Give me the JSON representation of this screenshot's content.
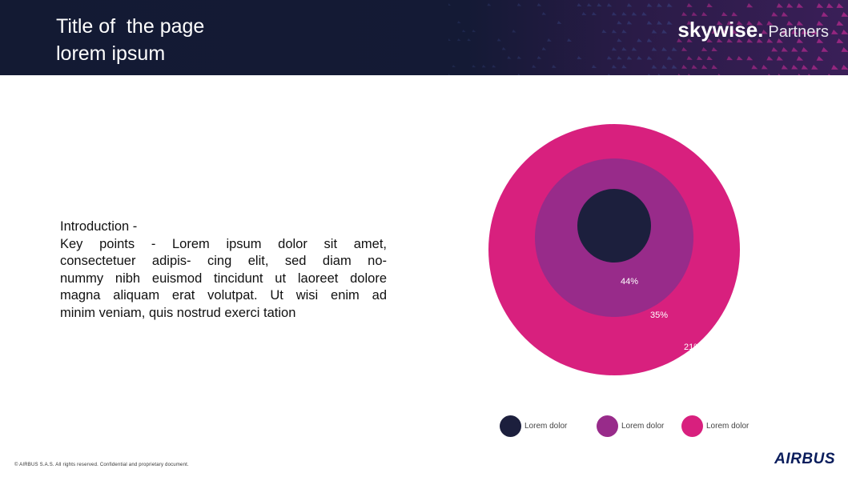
{
  "header": {
    "title_line1": "Title of  the page",
    "title_line2": "lorem ipsum",
    "brand_main": "skywise.",
    "brand_sub": "Partners"
  },
  "intro": {
    "heading": "Introduction -",
    "lines": [
      "Key  points  -  Lorem    ipsum  dolor  sit  amet,",
      "consectetuer  adipis-    cing  elit,  sed  diam  no-",
      "nummy nibh euismod   tincidunt ut laoreet  dolore",
      "magna  aliquam   erat  volutpat.  Ut  wisi   enim  ad",
      "minim veniam,  quis nostrud exerci  tation"
    ]
  },
  "chart_data": {
    "type": "pie",
    "layout": "nested-circles",
    "series": [
      {
        "name": "Lorem dolor",
        "value": 44,
        "label": "44%",
        "color": "#1c1f3d"
      },
      {
        "name": "Lorem dolor",
        "value": 35,
        "label": "35%",
        "color": "#982b8a"
      },
      {
        "name": "Lorem dolor",
        "value": 21,
        "label": "21%",
        "color": "#d8207e"
      }
    ],
    "legend_placement": "bottom"
  },
  "footer": {
    "note": "© AIRBUS S.A.S. All rights reserved. Confidential and proprietary document.",
    "logo": "AIRBUS"
  },
  "colors": {
    "header_bg": "#141a35",
    "accent_magenta": "#d8207e",
    "accent_purple": "#982b8a",
    "dark_navy": "#1c1f3d"
  }
}
